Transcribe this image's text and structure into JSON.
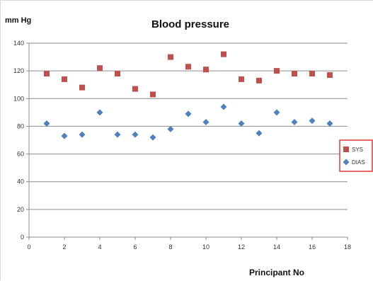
{
  "chart_data": {
    "type": "scatter",
    "title": "Blood pressure",
    "ylabel": "mm Hg",
    "xlabel": "Principant No",
    "xlim": [
      0,
      18
    ],
    "ylim": [
      0,
      140
    ],
    "xticks": [
      0,
      2,
      4,
      6,
      8,
      10,
      12,
      14,
      16,
      18
    ],
    "yticks": [
      0,
      20,
      40,
      60,
      80,
      100,
      120,
      140
    ],
    "grid": "horizontal",
    "legend_position": "right",
    "series": [
      {
        "name": "SYS",
        "marker": "square",
        "color": "#c0504d",
        "x": [
          1,
          2,
          3,
          4,
          5,
          6,
          7,
          8,
          9,
          10,
          11,
          12,
          13,
          14,
          15,
          16,
          17
        ],
        "y": [
          118,
          114,
          108,
          122,
          118,
          107,
          103,
          130,
          123,
          121,
          132,
          114,
          113,
          120,
          118,
          118,
          117
        ]
      },
      {
        "name": "DIAS",
        "marker": "diamond",
        "color": "#4f81bd",
        "x": [
          1,
          2,
          3,
          4,
          5,
          6,
          7,
          8,
          9,
          10,
          11,
          12,
          13,
          14,
          15,
          16,
          17
        ],
        "y": [
          82,
          73,
          74,
          90,
          74,
          74,
          72,
          78,
          89,
          83,
          94,
          82,
          75,
          90,
          83,
          84,
          82
        ]
      }
    ]
  }
}
